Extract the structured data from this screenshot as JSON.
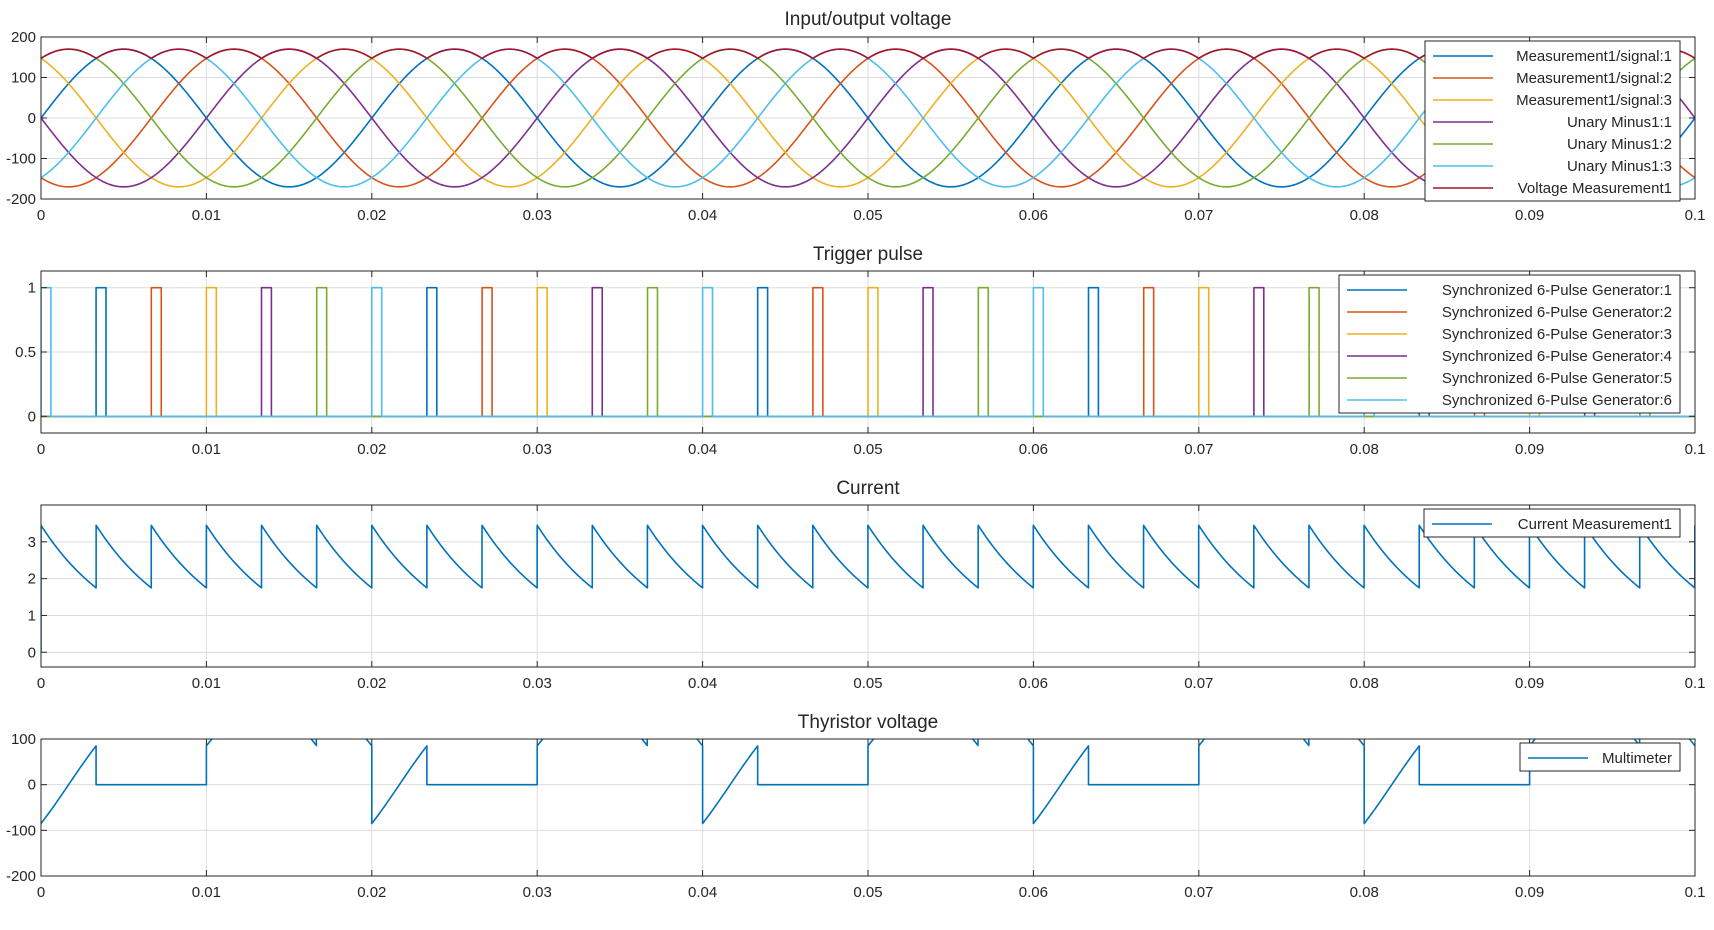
{
  "chart_data": [
    {
      "type": "line",
      "title": "Input/output voltage",
      "xlabel": "",
      "ylabel": "",
      "xlim": [
        0,
        0.1
      ],
      "ylim": [
        -200,
        200
      ],
      "xticks": [
        0,
        0.01,
        0.02,
        0.03,
        0.04,
        0.05,
        0.06,
        0.07,
        0.08,
        0.09,
        0.1
      ],
      "xtick_labels": [
        "0",
        "0.01",
        "0.02",
        "0.03",
        "0.04",
        "0.05",
        "0.06",
        "0.07",
        "0.08",
        "0.09",
        "0.1"
      ],
      "yticks": [
        -200,
        -100,
        0,
        100,
        200
      ],
      "ytick_labels": [
        "-200",
        "-100",
        "0",
        "100",
        "200"
      ],
      "grid": true,
      "legend_placement": "top-right",
      "frequency_hz": 50,
      "series": [
        {
          "name": "Measurement1/signal:1",
          "color": "#0072BD",
          "kind": "sine",
          "amplitude": 170,
          "phase_deg": 0
        },
        {
          "name": "Measurement1/signal:2",
          "color": "#D95319",
          "kind": "sine",
          "amplitude": 170,
          "phase_deg": -120
        },
        {
          "name": "Measurement1/signal:3",
          "color": "#EDB120",
          "kind": "sine",
          "amplitude": 170,
          "phase_deg": 120
        },
        {
          "name": "Unary Minus1:1",
          "color": "#7E2F8E",
          "kind": "sine",
          "amplitude": 170,
          "phase_deg": 180
        },
        {
          "name": "Unary Minus1:2",
          "color": "#77AC30",
          "kind": "sine",
          "amplitude": 170,
          "phase_deg": 60
        },
        {
          "name": "Unary Minus1:3",
          "color": "#4DBEEE",
          "kind": "sine",
          "amplitude": 170,
          "phase_deg": -60
        },
        {
          "name": "Voltage Measurement1",
          "color": "#A2142F",
          "kind": "envelope",
          "amplitude": 170,
          "minimum": 147
        }
      ]
    },
    {
      "type": "line",
      "title": "Trigger pulse",
      "xlabel": "",
      "ylabel": "",
      "xlim": [
        0,
        0.1
      ],
      "ylim": [
        -0.13,
        1.13
      ],
      "xticks": [
        0,
        0.01,
        0.02,
        0.03,
        0.04,
        0.05,
        0.06,
        0.07,
        0.08,
        0.09,
        0.1
      ],
      "xtick_labels": [
        "0",
        "0.01",
        "0.02",
        "0.03",
        "0.04",
        "0.05",
        "0.06",
        "0.07",
        "0.08",
        "0.09",
        "0.1"
      ],
      "yticks": [
        0,
        0.5,
        1
      ],
      "ytick_labels": [
        "0",
        "0.5",
        "1"
      ],
      "grid": true,
      "legend_placement": "top-right",
      "pulse_width": 0.0006,
      "series": [
        {
          "name": "Synchronized 6-Pulse Generator:1",
          "color": "#0072BD",
          "pulse_starts": [
            0.00333,
            0.02333,
            0.04333,
            0.06333,
            0.08333
          ]
        },
        {
          "name": "Synchronized 6-Pulse Generator:2",
          "color": "#D95319",
          "pulse_starts": [
            0.00667,
            0.02667,
            0.04667,
            0.06667,
            0.08667
          ]
        },
        {
          "name": "Synchronized 6-Pulse Generator:3",
          "color": "#EDB120",
          "pulse_starts": [
            0.01,
            0.03,
            0.05,
            0.07,
            0.09
          ]
        },
        {
          "name": "Synchronized 6-Pulse Generator:4",
          "color": "#7E2F8E",
          "pulse_starts": [
            0.01333,
            0.03333,
            0.05333,
            0.07333,
            0.09333
          ]
        },
        {
          "name": "Synchronized 6-Pulse Generator:5",
          "color": "#77AC30",
          "pulse_starts": [
            0.01667,
            0.03667,
            0.05667,
            0.07667,
            0.09667
          ]
        },
        {
          "name": "Synchronized 6-Pulse Generator:6",
          "color": "#4DBEEE",
          "pulse_starts": [
            0.0,
            0.02,
            0.04,
            0.06,
            0.08
          ]
        }
      ]
    },
    {
      "type": "line",
      "title": "Current",
      "xlabel": "",
      "ylabel": "",
      "xlim": [
        0,
        0.1
      ],
      "ylim": [
        -0.4,
        4.0
      ],
      "xticks": [
        0,
        0.01,
        0.02,
        0.03,
        0.04,
        0.05,
        0.06,
        0.07,
        0.08,
        0.09,
        0.1
      ],
      "xtick_labels": [
        "0",
        "0.01",
        "0.02",
        "0.03",
        "0.04",
        "0.05",
        "0.06",
        "0.07",
        "0.08",
        "0.09",
        "0.1"
      ],
      "yticks": [
        0,
        1,
        2,
        3
      ],
      "ytick_labels": [
        "0",
        "1",
        "2",
        "3"
      ],
      "grid": true,
      "legend_placement": "top-right",
      "series": [
        {
          "name": "Current Measurement1",
          "color": "#0072BD",
          "kind": "sawtooth_decay",
          "period": 0.003333,
          "peak": 3.45,
          "minimum": 1.75
        }
      ]
    },
    {
      "type": "line",
      "title": "Thyristor voltage",
      "xlabel": "",
      "ylabel": "",
      "xlim": [
        0,
        0.1
      ],
      "ylim": [
        -200,
        100
      ],
      "xticks": [
        0,
        0.01,
        0.02,
        0.03,
        0.04,
        0.05,
        0.06,
        0.07,
        0.08,
        0.09,
        0.1
      ],
      "xtick_labels": [
        "0",
        "0.01",
        "0.02",
        "0.03",
        "0.04",
        "0.05",
        "0.06",
        "0.07",
        "0.08",
        "0.09",
        "0.1"
      ],
      "yticks": [
        -200,
        -100,
        0,
        100
      ],
      "ytick_labels": [
        "-200",
        "-100",
        "0",
        "100"
      ],
      "grid": true,
      "legend_placement": "top-right",
      "series": [
        {
          "name": "Multimeter",
          "color": "#0072BD",
          "kind": "thyristor",
          "amplitude": 170,
          "period": 0.02,
          "conduct_start": 0.00333,
          "conduct_end": 0.01
        }
      ]
    }
  ]
}
